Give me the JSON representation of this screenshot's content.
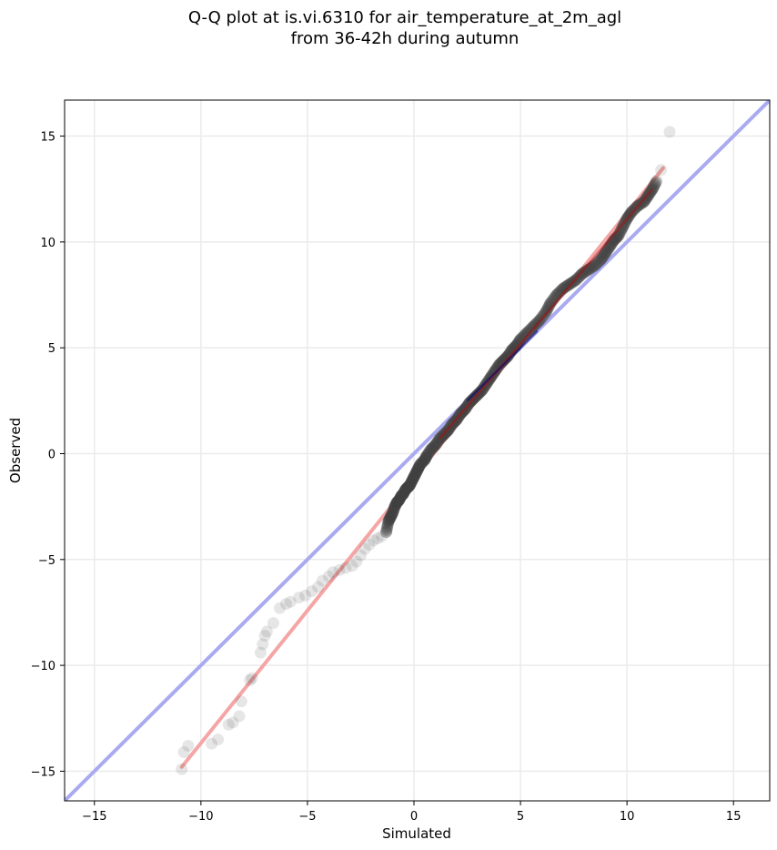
{
  "chart_data": {
    "type": "scatter",
    "title_line1": "Q-Q plot at is.vi.6310 for air_temperature_at_2m_agl",
    "title_line2": "from 36-42h during autumn",
    "xlabel": "Simulated",
    "ylabel": "Observed",
    "xlim": [
      -16.4,
      16.7
    ],
    "ylim": [
      -16.4,
      16.7
    ],
    "xticks": [
      -15,
      -10,
      -5,
      0,
      5,
      10,
      15
    ],
    "yticks": [
      -15,
      -10,
      -5,
      0,
      5,
      10,
      15
    ],
    "xtick_labels": [
      "−15",
      "−10",
      "−5",
      "0",
      "5",
      "10",
      "15"
    ],
    "ytick_labels": [
      "−15",
      "−10",
      "−5",
      "0",
      "5",
      "10",
      "15"
    ],
    "grid": true,
    "colors": {
      "points": "#404040",
      "identity_line": "#aaaaf0",
      "fit_line": "#f5a5a5",
      "fit_line_dark": "#aa1111",
      "identity_dark": "#00007a",
      "grid": "#ebebeb"
    },
    "reference_lines": [
      {
        "role": "identity",
        "x": [
          -16.4,
          16.7
        ],
        "y": [
          -16.4,
          16.7
        ]
      },
      {
        "role": "fit",
        "x": [
          -10.9,
          11.7
        ],
        "y": [
          -14.8,
          13.5
        ]
      }
    ],
    "series": [
      {
        "points": [
          [
            -10.9,
            -14.9
          ],
          [
            -10.8,
            -14.1
          ],
          [
            -10.6,
            -13.8
          ],
          [
            -9.5,
            -13.7
          ],
          [
            -9.2,
            -13.5
          ],
          [
            -8.7,
            -12.8
          ],
          [
            -8.5,
            -12.7
          ],
          [
            -8.2,
            -12.4
          ],
          [
            -8.1,
            -11.7
          ],
          [
            -7.7,
            -10.7
          ],
          [
            -7.6,
            -10.6
          ],
          [
            -7.2,
            -9.4
          ],
          [
            -7.1,
            -9.0
          ],
          [
            -7.0,
            -8.6
          ],
          [
            -6.9,
            -8.4
          ],
          [
            -6.6,
            -8.0
          ],
          [
            -6.3,
            -7.3
          ],
          [
            -6.0,
            -7.1
          ],
          [
            -5.8,
            -7.0
          ],
          [
            -5.4,
            -6.8
          ],
          [
            -5.1,
            -6.7
          ],
          [
            -4.8,
            -6.5
          ],
          [
            -4.5,
            -6.3
          ],
          [
            -4.3,
            -6.0
          ],
          [
            -4.0,
            -5.8
          ],
          [
            -3.8,
            -5.6
          ],
          [
            -3.5,
            -5.5
          ],
          [
            -3.2,
            -5.4
          ],
          [
            -2.9,
            -5.3
          ],
          [
            -2.7,
            -5.1
          ],
          [
            -2.5,
            -4.8
          ],
          [
            -2.3,
            -4.5
          ],
          [
            -2.1,
            -4.3
          ],
          [
            -1.9,
            -4.1
          ],
          [
            -1.7,
            -4.0
          ],
          [
            -1.5,
            -3.9
          ],
          [
            -1.3,
            -3.7
          ],
          [
            -1.2,
            -3.2
          ],
          [
            -1.1,
            -3.0
          ],
          [
            -1.0,
            -2.8
          ],
          [
            -0.9,
            -2.5
          ],
          [
            -0.8,
            -2.3
          ],
          [
            -0.7,
            -2.2
          ],
          [
            -0.6,
            -2.0
          ],
          [
            -0.5,
            -1.9
          ],
          [
            -0.4,
            -1.7
          ],
          [
            -0.3,
            -1.6
          ],
          [
            -0.2,
            -1.5
          ],
          [
            -0.1,
            -1.3
          ],
          [
            0.0,
            -1.1
          ],
          [
            0.1,
            -0.9
          ],
          [
            0.2,
            -0.7
          ],
          [
            0.3,
            -0.5
          ],
          [
            0.5,
            -0.3
          ],
          [
            0.6,
            -0.1
          ],
          [
            0.8,
            0.2
          ],
          [
            1.0,
            0.4
          ],
          [
            1.2,
            0.7
          ],
          [
            1.4,
            0.9
          ],
          [
            1.6,
            1.1
          ],
          [
            1.8,
            1.4
          ],
          [
            2.0,
            1.6
          ],
          [
            2.2,
            1.9
          ],
          [
            2.4,
            2.1
          ],
          [
            2.6,
            2.4
          ],
          [
            2.8,
            2.6
          ],
          [
            3.0,
            2.8
          ],
          [
            3.2,
            3.0
          ],
          [
            3.4,
            3.3
          ],
          [
            3.6,
            3.6
          ],
          [
            3.8,
            3.9
          ],
          [
            4.0,
            4.2
          ],
          [
            4.2,
            4.4
          ],
          [
            4.4,
            4.6
          ],
          [
            4.6,
            4.9
          ],
          [
            4.8,
            5.1
          ],
          [
            5.0,
            5.4
          ],
          [
            5.3,
            5.7
          ],
          [
            5.6,
            6.0
          ],
          [
            5.9,
            6.3
          ],
          [
            6.2,
            6.7
          ],
          [
            6.4,
            7.1
          ],
          [
            6.7,
            7.5
          ],
          [
            7.0,
            7.8
          ],
          [
            7.3,
            8.0
          ],
          [
            7.6,
            8.2
          ],
          [
            7.9,
            8.5
          ],
          [
            8.2,
            8.7
          ],
          [
            8.5,
            8.9
          ],
          [
            8.8,
            9.2
          ],
          [
            9.0,
            9.5
          ],
          [
            9.2,
            9.8
          ],
          [
            9.4,
            10.1
          ],
          [
            9.6,
            10.3
          ],
          [
            9.8,
            10.7
          ],
          [
            10.0,
            11.1
          ],
          [
            10.2,
            11.4
          ],
          [
            10.5,
            11.7
          ],
          [
            10.8,
            11.9
          ],
          [
            11.0,
            12.2
          ],
          [
            11.2,
            12.5
          ],
          [
            11.4,
            12.9
          ],
          [
            11.6,
            13.4
          ],
          [
            12.0,
            15.2
          ]
        ]
      }
    ]
  }
}
